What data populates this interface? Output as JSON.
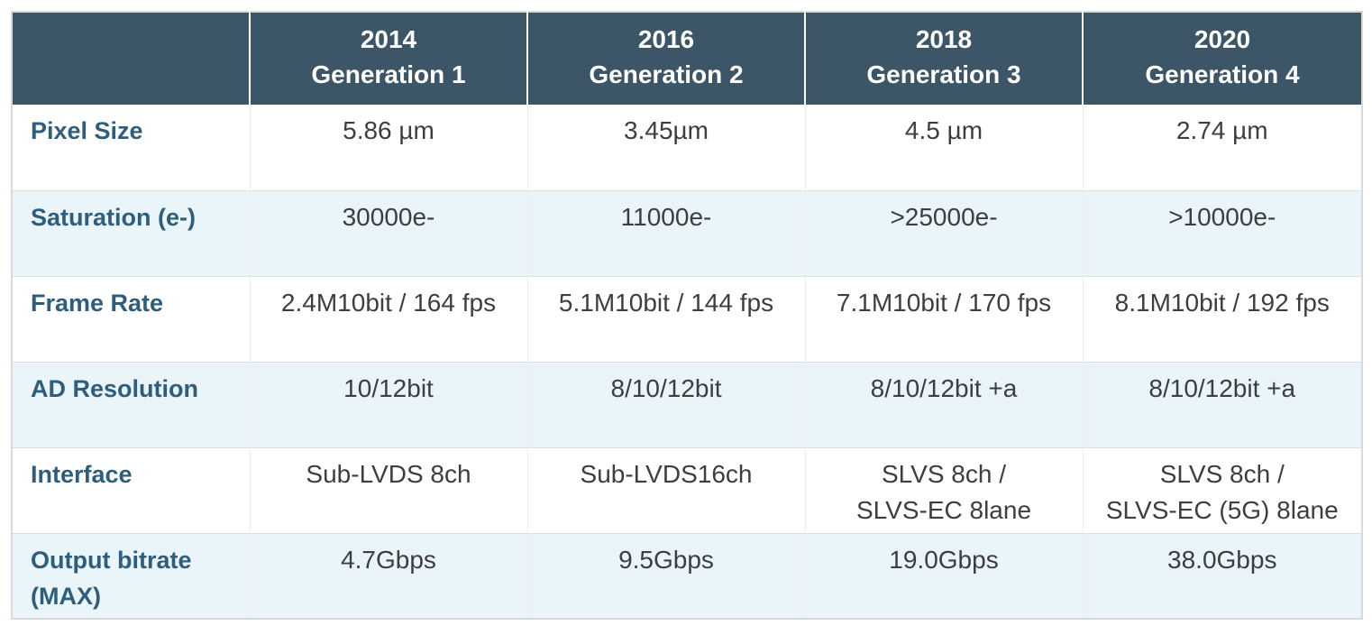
{
  "chart_data": {
    "type": "table",
    "header": {
      "corner": "",
      "columns": [
        {
          "year": "2014",
          "generation": "Generation 1"
        },
        {
          "year": "2016",
          "generation": "Generation 2"
        },
        {
          "year": "2018",
          "generation": "Generation 3"
        },
        {
          "year": "2020",
          "generation": "Generation 4"
        }
      ]
    },
    "rows": [
      {
        "label": "Pixel Size",
        "values": [
          "5.86 µm",
          "3.45µm",
          "4.5 µm",
          "2.74 µm"
        ]
      },
      {
        "label": "Saturation (e-)",
        "values": [
          "30000e-",
          "11000e-",
          ">25000e-",
          ">10000e-"
        ]
      },
      {
        "label": "Frame Rate",
        "values": [
          "2.4M10bit / 164 fps",
          "5.1M10bit / 144 fps",
          "7.1M10bit / 170 fps",
          "8.1M10bit / 192 fps"
        ]
      },
      {
        "label": "AD Resolution",
        "values": [
          "10/12bit",
          "8/10/12bit",
          "8/10/12bit +a",
          "8/10/12bit +a"
        ]
      },
      {
        "label": "Interface",
        "values": [
          "Sub-LVDS 8ch",
          "Sub-LVDS16ch",
          "SLVS 8ch /\nSLVS-EC 8lane",
          "SLVS 8ch /\nSLVS-EC (5G) 8lane"
        ]
      },
      {
        "label": "Output bitrate\n(MAX)",
        "values": [
          "4.7Gbps",
          "9.5Gbps",
          "19.0Gbps",
          "38.0Gbps"
        ]
      }
    ],
    "layout_hints": {
      "alternating_rows": true,
      "header_position": "top",
      "first_column_is_row_labels": true
    }
  },
  "colors": {
    "header_bg": "#3d5667",
    "header_text": "#ffffff",
    "alt_row_bg": "#e9f5f8",
    "row_bg": "#ffffff",
    "label_text": "#2f5e7d",
    "cell_text": "#3d3e40",
    "outer_border": "#d9d9d9",
    "inner_border": "#ececec"
  }
}
